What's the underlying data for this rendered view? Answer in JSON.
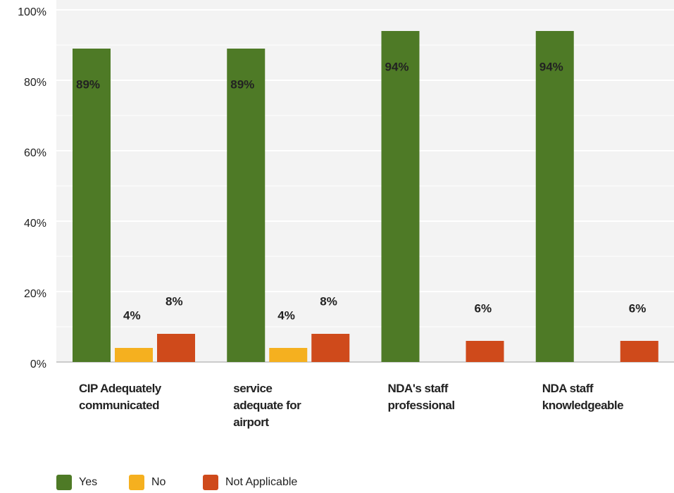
{
  "chart_data": {
    "type": "bar",
    "categories": [
      "CIP Adequately communicated",
      "service adequate for airport",
      "NDA's staff professional",
      "NDA staff knowledgeable"
    ],
    "series": [
      {
        "name": "Yes",
        "color": "#4e7a26",
        "values": [
          89,
          89,
          94,
          94
        ],
        "value_labels": [
          "89%",
          "89%",
          "94%",
          "94%"
        ]
      },
      {
        "name": "No",
        "color": "#f5b01f",
        "values": [
          4,
          4,
          null,
          null
        ],
        "value_labels": [
          "4%",
          "4%",
          null,
          null
        ]
      },
      {
        "name": "Not Applicable",
        "color": "#cf4a1b",
        "values": [
          8,
          8,
          6,
          6
        ],
        "value_labels": [
          "8%",
          "8%",
          "6%",
          "6%"
        ]
      }
    ],
    "ylim": [
      0,
      100
    ],
    "yticks": [
      {
        "value": 0,
        "label": "0%"
      },
      {
        "value": 20,
        "label": "20%"
      },
      {
        "value": 40,
        "label": "40%"
      },
      {
        "value": 60,
        "label": "60%"
      },
      {
        "value": 80,
        "label": "80%"
      },
      {
        "value": 100,
        "label": "100%"
      }
    ],
    "minor_yticks": [
      10,
      30,
      50,
      70,
      90
    ],
    "grid": true,
    "legend": "bottom"
  }
}
